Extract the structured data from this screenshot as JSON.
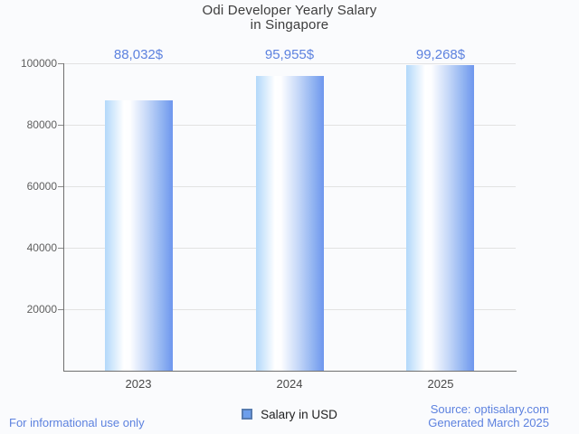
{
  "title": {
    "line1": "Odi Developer Yearly Salary",
    "line2": "in Singapore"
  },
  "chart_data": {
    "type": "bar",
    "title": "Odi Developer Yearly Salary in Singapore",
    "categories": [
      "2023",
      "2024",
      "2025"
    ],
    "values": [
      88032,
      95955,
      99268
    ],
    "value_labels": [
      "88,032$",
      "95,955$",
      "99,268$"
    ],
    "series": [
      {
        "name": "Salary in USD",
        "values": [
          88032,
          95955,
          99268
        ]
      }
    ],
    "xlabel": "",
    "ylabel": "",
    "ylim": [
      0,
      100000
    ],
    "yticks": [
      20000,
      40000,
      60000,
      80000,
      100000
    ],
    "ytick_labels": [
      "20000",
      "40000",
      "60000",
      "80000",
      "100000"
    ],
    "grid": true,
    "legend_position": "bottom"
  },
  "legend": {
    "label": "Salary in USD"
  },
  "footer": {
    "left": "For informational use only",
    "source": "Source: optisalary.com",
    "generated": "Generated March 2025"
  },
  "colors": {
    "background": "#fafbfd",
    "title_text": "#3d3d3d",
    "value_label_text": "#5d82df",
    "footer_text": "#5d82df",
    "axis_label_text": "#5f5f5f",
    "category_label_text": "#494949",
    "grid_line": "#e2e2e2",
    "axis_line": "#6f6f6f",
    "bar_gradient_left": "#b2d8fa",
    "bar_gradient_highlight": "#ffffff",
    "bar_gradient_right": "#6e96ee",
    "legend_swatch_fill": "#6d9eeb",
    "legend_swatch_border": "#587cb0"
  }
}
